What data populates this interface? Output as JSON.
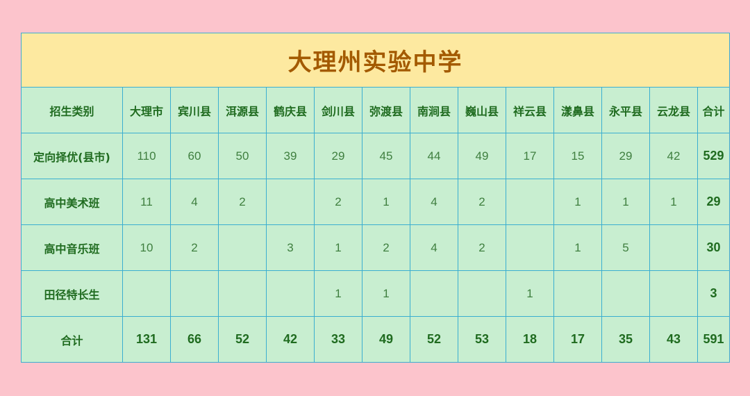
{
  "title": "大理州实验中学",
  "columns": [
    "招生类别",
    "大理市",
    "宾川县",
    "洱源县",
    "鹤庆县",
    "剑川县",
    "弥渡县",
    "南涧县",
    "巍山县",
    "祥云县",
    "漾鼻县",
    "永平县",
    "云龙县",
    "合计"
  ],
  "rows": [
    {
      "label": "定向择优(县市)",
      "values": [
        "110",
        "60",
        "50",
        "39",
        "29",
        "45",
        "44",
        "49",
        "17",
        "15",
        "29",
        "42"
      ],
      "total": "529"
    },
    {
      "label": "高中美术班",
      "values": [
        "11",
        "4",
        "2",
        "",
        "2",
        "1",
        "4",
        "2",
        "",
        "1",
        "1",
        "1"
      ],
      "total": "29"
    },
    {
      "label": "高中音乐班",
      "values": [
        "10",
        "2",
        "",
        "3",
        "1",
        "2",
        "4",
        "2",
        "",
        "1",
        "5",
        ""
      ],
      "total": "30"
    },
    {
      "label": "田径特长生",
      "values": [
        "",
        "",
        "",
        "",
        "1",
        "1",
        "",
        "",
        "1",
        "",
        "",
        ""
      ],
      "total": "3"
    }
  ],
  "totals": {
    "label": "合计",
    "values": [
      "131",
      "66",
      "52",
      "42",
      "33",
      "49",
      "52",
      "53",
      "18",
      "17",
      "35",
      "43"
    ],
    "total": "591"
  },
  "colors": {
    "background": "#fcc4cc",
    "title_band": "#fde9a0",
    "title_text": "#a35a00",
    "cell": "#c8eed0",
    "border": "#3aaed0",
    "text": "#1f6b1f"
  }
}
